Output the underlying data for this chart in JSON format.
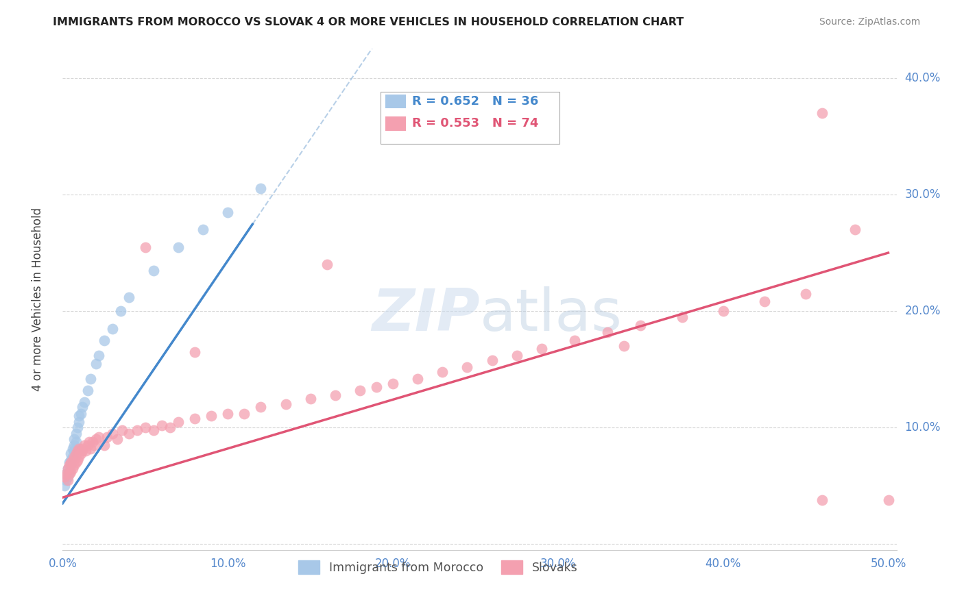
{
  "title": "IMMIGRANTS FROM MOROCCO VS SLOVAK 4 OR MORE VEHICLES IN HOUSEHOLD CORRELATION CHART",
  "source": "Source: ZipAtlas.com",
  "ylabel": "4 or more Vehicles in Household",
  "xlim": [
    0.0,
    0.505
  ],
  "ylim": [
    -0.005,
    0.425
  ],
  "xticks": [
    0.0,
    0.1,
    0.2,
    0.3,
    0.4,
    0.5
  ],
  "yticks": [
    0.0,
    0.1,
    0.2,
    0.3,
    0.4
  ],
  "xticklabels": [
    "0.0%",
    "10.0%",
    "20.0%",
    "30.0%",
    "40.0%",
    "50.0%"
  ],
  "yticklabels_right": [
    "",
    "10.0%",
    "20.0%",
    "30.0%",
    "40.0%"
  ],
  "legend1_label": "R = 0.652   N = 36",
  "legend2_label": "R = 0.553   N = 74",
  "legend1_color": "#a8c8e8",
  "legend2_color": "#f4a0b0",
  "line1_color": "#4488cc",
  "line2_color": "#e05575",
  "dashed_line_color": "#9abcde",
  "tick_label_color": "#5588cc",
  "background_color": "#ffffff",
  "watermark_zip": "ZIP",
  "watermark_atlas": "atlas",
  "morocco_x": [
    0.001,
    0.002,
    0.002,
    0.003,
    0.003,
    0.004,
    0.004,
    0.005,
    0.005,
    0.005,
    0.006,
    0.006,
    0.007,
    0.007,
    0.007,
    0.008,
    0.008,
    0.009,
    0.01,
    0.01,
    0.011,
    0.012,
    0.013,
    0.015,
    0.017,
    0.02,
    0.022,
    0.025,
    0.03,
    0.035,
    0.04,
    0.055,
    0.07,
    0.085,
    0.1,
    0.12
  ],
  "morocco_y": [
    0.05,
    0.055,
    0.06,
    0.058,
    0.065,
    0.062,
    0.07,
    0.068,
    0.072,
    0.078,
    0.075,
    0.082,
    0.08,
    0.085,
    0.09,
    0.088,
    0.095,
    0.1,
    0.105,
    0.11,
    0.112,
    0.118,
    0.122,
    0.132,
    0.142,
    0.155,
    0.162,
    0.175,
    0.185,
    0.2,
    0.212,
    0.235,
    0.255,
    0.27,
    0.285,
    0.305
  ],
  "slovak_x": [
    0.001,
    0.002,
    0.003,
    0.003,
    0.004,
    0.004,
    0.005,
    0.005,
    0.006,
    0.006,
    0.007,
    0.007,
    0.008,
    0.008,
    0.009,
    0.009,
    0.01,
    0.01,
    0.011,
    0.012,
    0.012,
    0.013,
    0.014,
    0.015,
    0.016,
    0.017,
    0.018,
    0.019,
    0.02,
    0.022,
    0.025,
    0.027,
    0.03,
    0.033,
    0.036,
    0.04,
    0.045,
    0.05,
    0.055,
    0.06,
    0.065,
    0.07,
    0.08,
    0.09,
    0.1,
    0.11,
    0.12,
    0.135,
    0.15,
    0.165,
    0.18,
    0.19,
    0.2,
    0.215,
    0.23,
    0.245,
    0.26,
    0.275,
    0.29,
    0.31,
    0.33,
    0.35,
    0.375,
    0.4,
    0.425,
    0.45,
    0.34,
    0.16,
    0.08,
    0.05,
    0.46,
    0.48,
    0.46,
    0.5
  ],
  "slovak_y": [
    0.058,
    0.06,
    0.055,
    0.065,
    0.06,
    0.068,
    0.062,
    0.07,
    0.065,
    0.072,
    0.068,
    0.075,
    0.07,
    0.078,
    0.072,
    0.08,
    0.075,
    0.082,
    0.078,
    0.08,
    0.082,
    0.085,
    0.08,
    0.085,
    0.088,
    0.082,
    0.088,
    0.085,
    0.09,
    0.092,
    0.085,
    0.092,
    0.095,
    0.09,
    0.098,
    0.095,
    0.098,
    0.1,
    0.098,
    0.102,
    0.1,
    0.105,
    0.108,
    0.11,
    0.112,
    0.112,
    0.118,
    0.12,
    0.125,
    0.128,
    0.132,
    0.135,
    0.138,
    0.142,
    0.148,
    0.152,
    0.158,
    0.162,
    0.168,
    0.175,
    0.182,
    0.188,
    0.195,
    0.2,
    0.208,
    0.215,
    0.17,
    0.24,
    0.165,
    0.255,
    0.37,
    0.27,
    0.038,
    0.038
  ]
}
